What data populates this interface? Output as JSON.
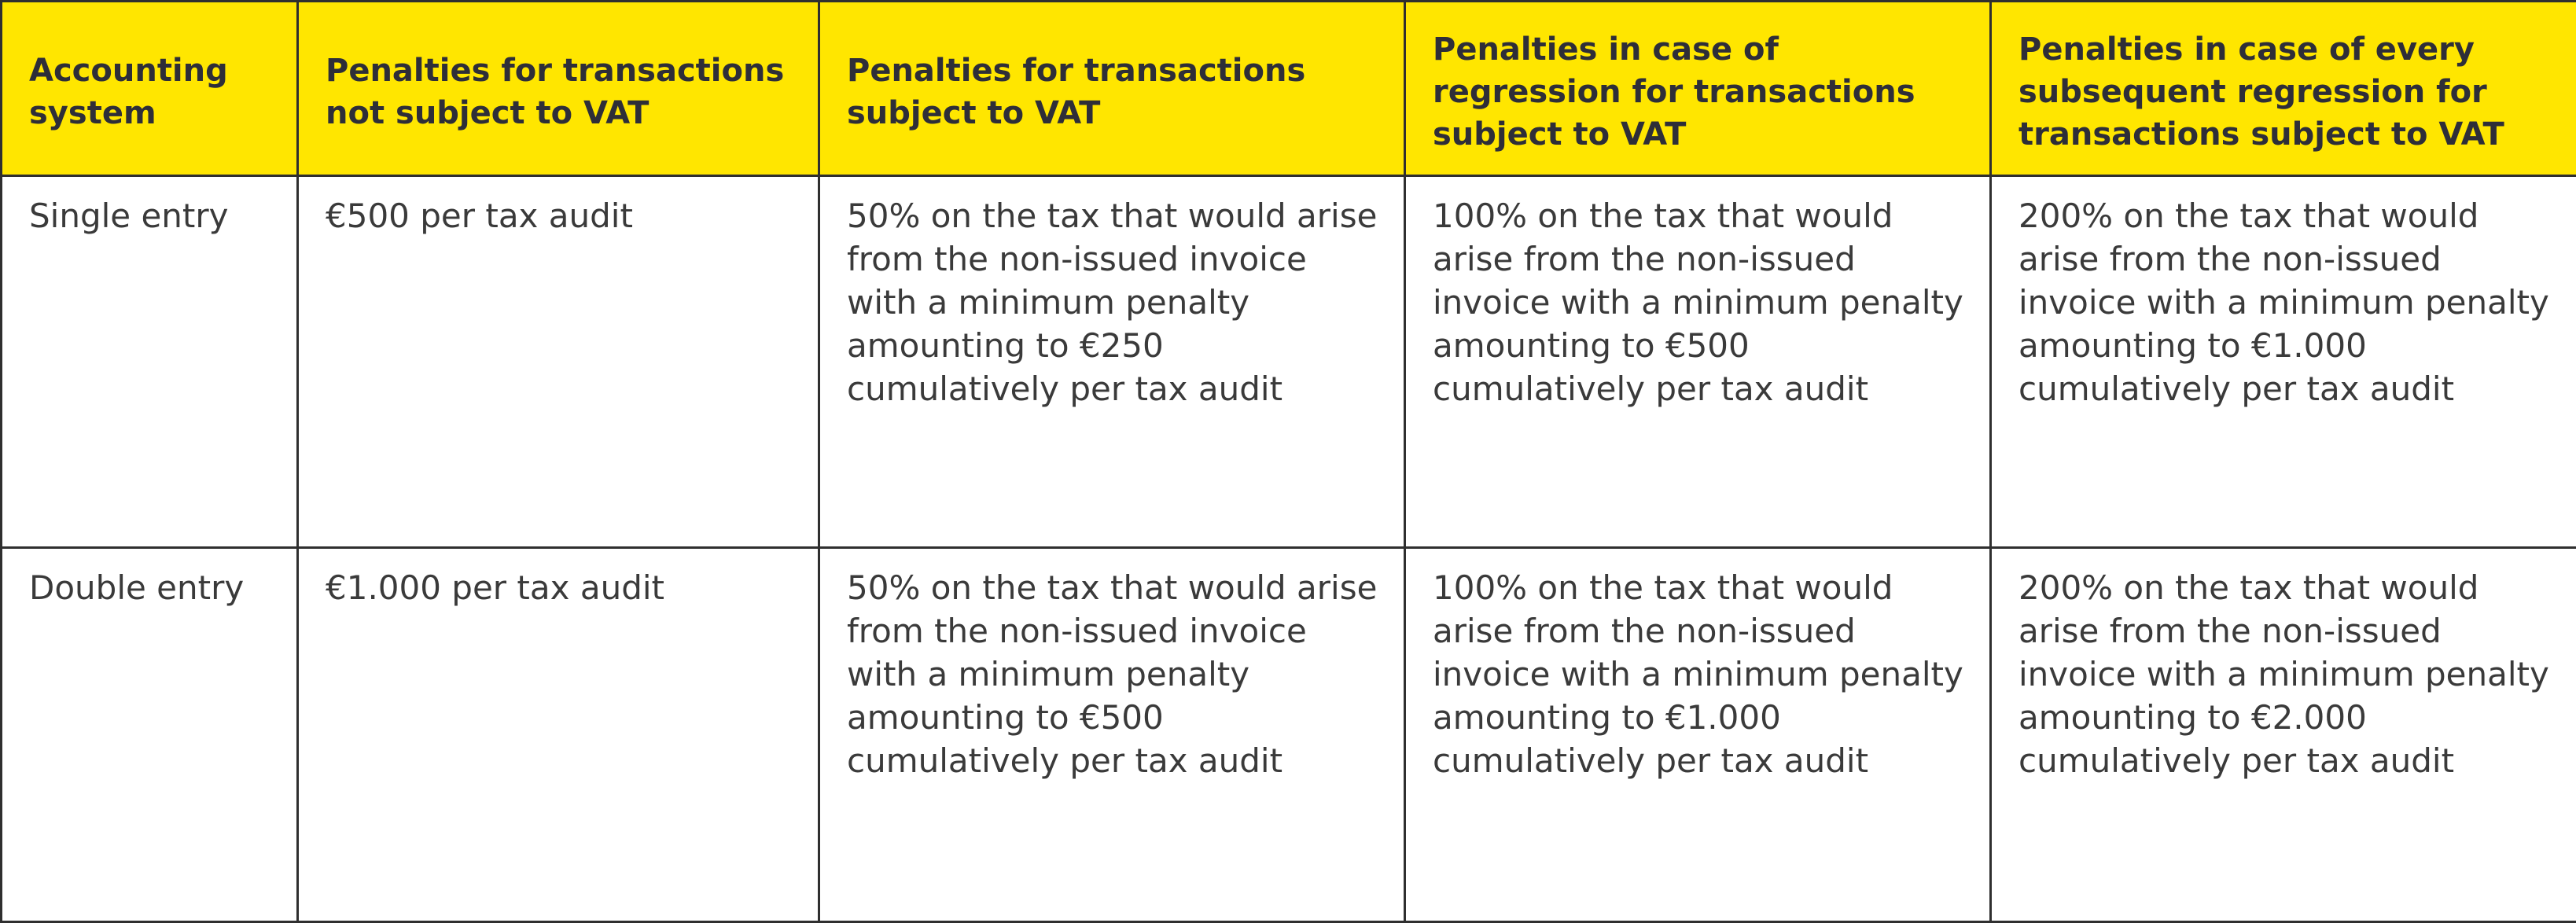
{
  "table": {
    "headers": [
      "Accounting system",
      "Penalties for transactions not subject to VAT",
      "Penalties for transactions subject to VAT",
      "Penalties in case of regression for transactions subject to VAT",
      "Penalties in case of every subsequent regression for transactions subject to VAT"
    ],
    "rows": [
      [
        "Single entry",
        "€500 per tax audit",
        "50% on the tax that would arise from the non-issued invoice with a minimum penalty amounting to €250 cumulatively per tax audit",
        "100% on the tax that would arise from the non-issued invoice with a minimum penalty amounting to €500 cumulatively per tax audit",
        "200% on the tax that would arise from the non-issued invoice with a minimum penalty amounting to €1.000 cumulatively per tax audit"
      ],
      [
        "Double entry",
        "€1.000 per tax audit",
        "50% on the tax that would arise from the non-issued invoice with a minimum penalty amounting to €500 cumulatively per tax audit",
        "100% on the tax that would arise from the non-issued invoice with a minimum penalty amounting to €1.000 cumulatively per tax audit",
        "200% on the tax that would arise from the non-issued invoice with a minimum penalty amounting to €2.000 cumulatively per tax audit"
      ]
    ]
  },
  "colors": {
    "header_background": "#ffe600",
    "header_text": "#2e2e38",
    "border": "#2f2f2f",
    "body_text": "#3a3a3a"
  }
}
